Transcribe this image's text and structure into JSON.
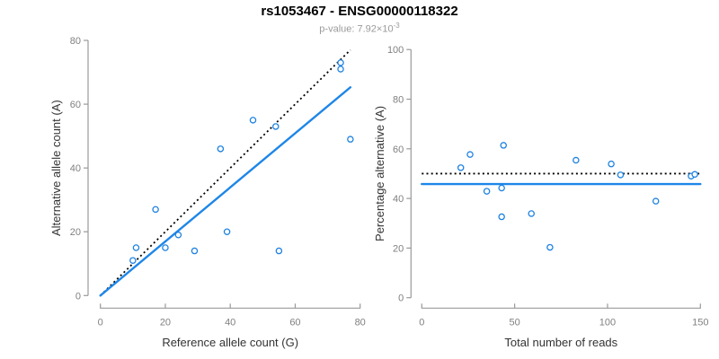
{
  "header": {
    "title": "rs1053467 - ENSG00000118322",
    "pvalue_prefix": "p-value: 7.92×10",
    "pvalue_exponent": "-3"
  },
  "chart_data": [
    {
      "type": "scatter",
      "xlabel": "Reference allele count (G)",
      "ylabel": "Alternative allele count (A)",
      "xlim": [
        0,
        80
      ],
      "ylim": [
        0,
        80
      ],
      "xticks": [
        0,
        20,
        40,
        60,
        80
      ],
      "yticks": [
        0,
        20,
        40,
        60,
        80
      ],
      "grid": false,
      "legend": null,
      "points": [
        [
          10,
          11
        ],
        [
          11,
          15
        ],
        [
          17,
          27
        ],
        [
          20,
          15
        ],
        [
          24,
          19
        ],
        [
          29,
          14
        ],
        [
          37,
          46
        ],
        [
          39,
          20
        ],
        [
          47,
          55
        ],
        [
          54,
          53
        ],
        [
          55,
          14
        ],
        [
          74,
          71
        ],
        [
          74,
          73
        ],
        [
          77,
          49
        ]
      ],
      "lines": [
        {
          "name": "identity-line",
          "style": "dotted",
          "color": "#000000",
          "x1": 0,
          "y1": 0,
          "x2": 77,
          "y2": 77
        },
        {
          "name": "regression-line",
          "style": "solid",
          "color": "#1E86E8",
          "x1": 0,
          "y1": 0,
          "x2": 77,
          "y2": 65.3
        }
      ]
    },
    {
      "type": "scatter",
      "xlabel": "Total number of reads",
      "ylabel": "Percentage alternative (A)",
      "xlim": [
        0,
        150
      ],
      "ylim": [
        0,
        100
      ],
      "xticks": [
        0,
        50,
        100,
        150
      ],
      "yticks": [
        0,
        20,
        40,
        60,
        80,
        100
      ],
      "grid": false,
      "legend": null,
      "points": [
        [
          21,
          52.4
        ],
        [
          26,
          57.7
        ],
        [
          35,
          42.9
        ],
        [
          43,
          44.2
        ],
        [
          43,
          32.6
        ],
        [
          44,
          61.4
        ],
        [
          59,
          33.9
        ],
        [
          69,
          20.3
        ],
        [
          83,
          55.4
        ],
        [
          102,
          53.9
        ],
        [
          107,
          49.5
        ],
        [
          126,
          38.9
        ],
        [
          145,
          49.0
        ],
        [
          147,
          49.7
        ]
      ],
      "lines": [
        {
          "name": "expected-50pct-line",
          "style": "dotted",
          "color": "#000000",
          "x1": 0,
          "y1": 50,
          "x2": 150,
          "y2": 50
        },
        {
          "name": "mean-percentage-line",
          "style": "solid",
          "color": "#1E86E8",
          "x1": 0,
          "y1": 45.8,
          "x2": 150,
          "y2": 45.8
        }
      ]
    }
  ],
  "style": {
    "point_color": "#1E82E0",
    "point_fill": "#ffffff",
    "axis_color": "#999999",
    "tick_label_color": "#808080",
    "axis_label_color": "#333333",
    "title_color": "#000000",
    "subtitle_color": "#9a9a9a"
  }
}
